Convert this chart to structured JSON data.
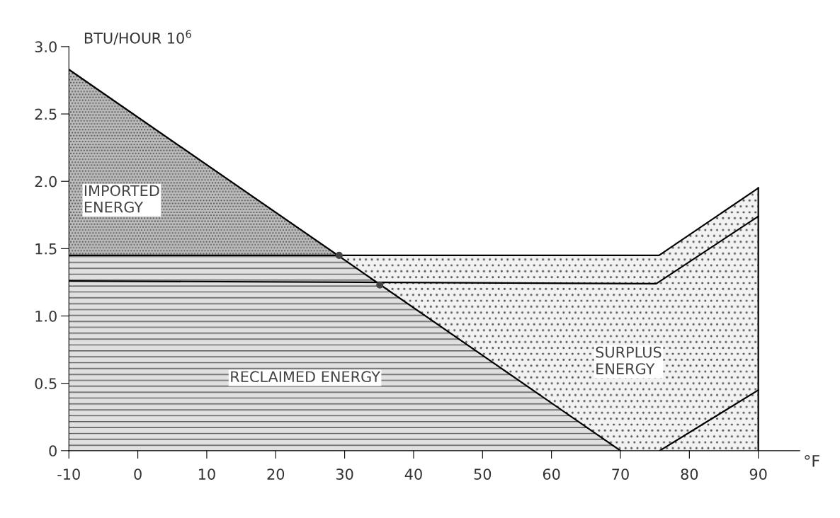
{
  "chart_data": {
    "type": "area",
    "ylabel": "BTU/HOUR 10$^{6}$",
    "xlabel": "°F",
    "xlim": [
      -10,
      96
    ],
    "ylim": [
      0,
      3.0
    ],
    "xticks": [
      -10,
      0,
      10,
      20,
      30,
      40,
      50,
      60,
      70,
      80,
      90
    ],
    "yticks": [
      {
        "value": 0,
        "label": "0"
      },
      0.5,
      {
        "value": 1,
        "label": "1.0"
      },
      1.5,
      {
        "value": 2,
        "label": "2.0"
      },
      2.5,
      {
        "value": 3,
        "label": "3.0"
      }
    ],
    "grid": false,
    "legend": false,
    "series": [
      {
        "color": "#bdbdbd",
        "x": [
          -10,
          29.2
        ],
        "values": [
          2.83,
          1.45
        ]
      },
      {
        "color": "#f2f2f2",
        "x": [
          29.2,
          75.6,
          90
        ],
        "values": [
          1.45,
          1.45,
          1.95
        ]
      },
      {
        "color": "#e0e0e0",
        "x": [
          -10,
          29.2,
          70
        ],
        "values": [
          1.45,
          1.45,
          0
        ]
      },
      {
        "type": "line",
        "color": "#000000",
        "x": [
          -10,
          70
        ],
        "values": [
          2.83,
          0
        ]
      },
      {
        "type": "line",
        "color": "#000000",
        "x": [
          -10,
          75.6,
          90
        ],
        "values": [
          1.45,
          1.45,
          1.95
        ]
      },
      {
        "type": "line",
        "color": "#000000",
        "x": [
          -10,
          75.2,
          90
        ],
        "values": [
          1.26,
          1.24,
          1.74
        ]
      },
      {
        "type": "line",
        "color": "#000000",
        "x": [
          75.7,
          90
        ],
        "values": [
          0,
          0.45
        ]
      },
      {
        "type": "line",
        "color": "#000000",
        "x": [
          90,
          90
        ],
        "values": [
          0,
          1.95
        ]
      },
      {
        "type": "scatter",
        "color": "#444444",
        "marker": "circle",
        "x": [
          29.2,
          35.1
        ],
        "values": [
          1.45,
          1.23
        ]
      }
    ],
    "annotations": [
      "IMPORTED\nENERGY",
      "RECLAIMED ENERGY",
      "SURPLUS\nENERGY"
    ]
  }
}
